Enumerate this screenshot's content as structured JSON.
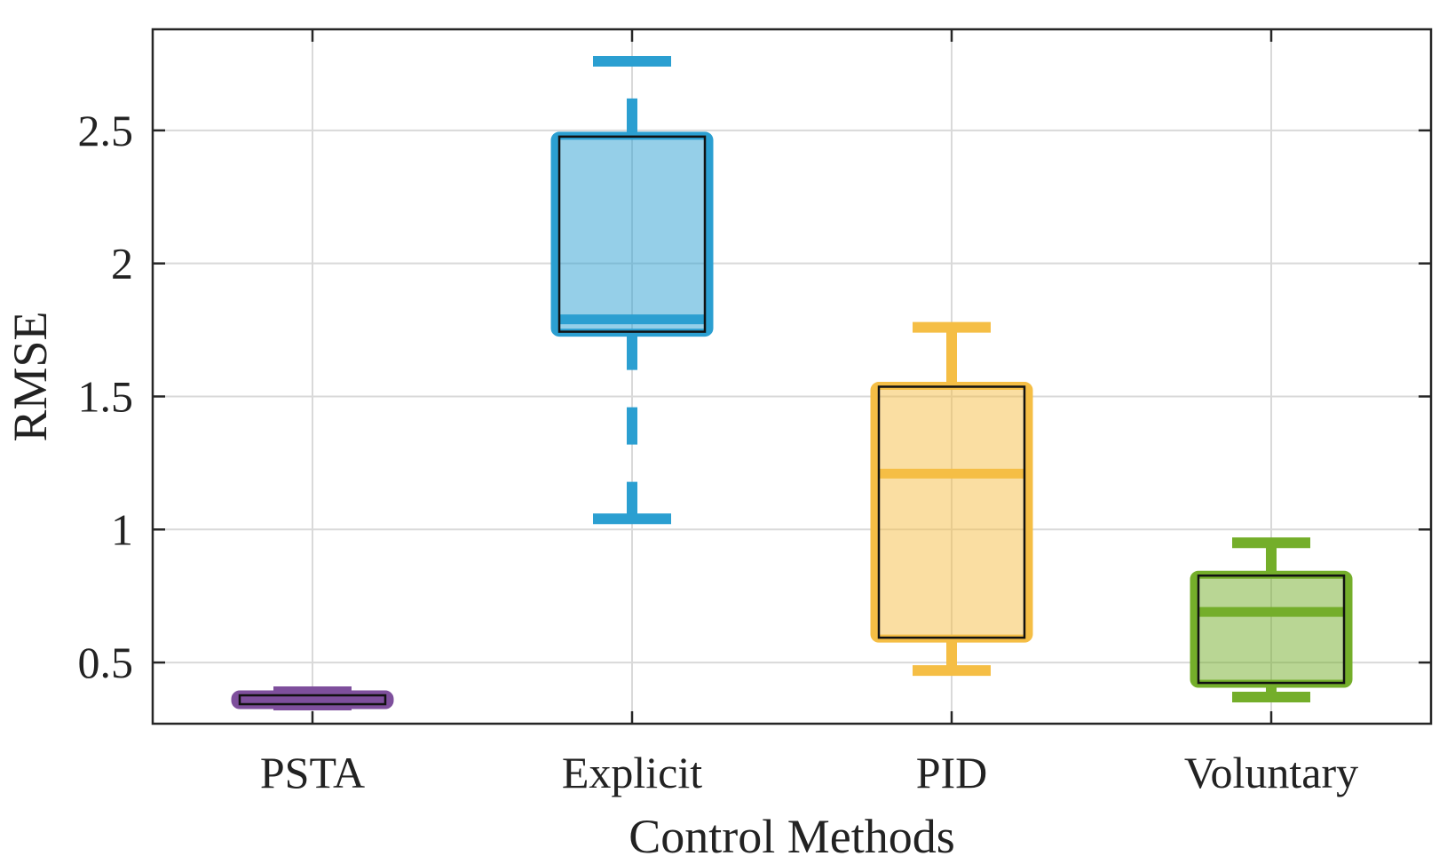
{
  "chart_data": {
    "type": "box",
    "title": "",
    "xlabel": "Control Methods",
    "ylabel": "RMSE",
    "ylim": [
      0.27,
      2.88
    ],
    "yticks": [
      0.5,
      1,
      1.5,
      2,
      2.5
    ],
    "ytick_labels": [
      "0.5",
      "1",
      "1.5",
      "2",
      "2.5"
    ],
    "grid": true,
    "categories": [
      "PSTA",
      "Explicit",
      "PID",
      "Voluntary"
    ],
    "boxes": [
      {
        "name": "PSTA",
        "color": "#7E4F9C",
        "whisker_low": 0.34,
        "q1": 0.34,
        "median": 0.37,
        "q3": 0.38,
        "whisker_high": 0.39
      },
      {
        "name": "Explicit",
        "color": "#2B9FD1",
        "whisker_low": 1.04,
        "q1": 1.74,
        "median": 1.79,
        "q3": 2.48,
        "whisker_high": 2.76
      },
      {
        "name": "PID",
        "color": "#F5BE45",
        "whisker_low": 0.47,
        "q1": 0.59,
        "median": 1.21,
        "q3": 1.54,
        "whisker_high": 1.76
      },
      {
        "name": "Voluntary",
        "color": "#74AE2A",
        "whisker_low": 0.37,
        "q1": 0.42,
        "median": 0.69,
        "q3": 0.83,
        "whisker_high": 0.95
      }
    ]
  }
}
